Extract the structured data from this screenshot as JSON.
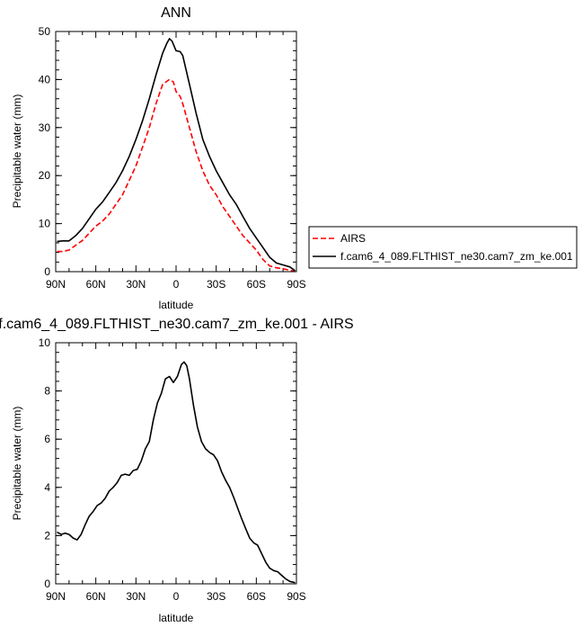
{
  "chart_data": [
    {
      "type": "line",
      "title": "ANN",
      "xlabel": "latitude",
      "ylabel": "Precipitable water (mm)",
      "xlim": [
        90,
        -90
      ],
      "ylim": [
        0,
        50
      ],
      "xticks": [
        90,
        60,
        30,
        0,
        -30,
        -60,
        -90
      ],
      "xtick_labels": [
        "90N",
        "60N",
        "30N",
        "0",
        "30S",
        "60S",
        "90S"
      ],
      "yticks": [
        0,
        10,
        20,
        30,
        40,
        50
      ],
      "ytick_labels": [
        "0",
        "10",
        "20",
        "30",
        "40",
        "50"
      ],
      "legend_position": "outside-right",
      "series": [
        {
          "name": "AIRS",
          "color": "#ff0000",
          "dash": "dashed",
          "x": [
            89,
            85,
            80,
            75,
            70,
            65,
            60,
            55,
            50,
            45,
            40,
            35,
            30,
            25,
            20,
            15,
            10,
            5,
            2,
            0,
            -3,
            -5,
            -10,
            -15,
            -20,
            -25,
            -30,
            -35,
            -40,
            -45,
            -50,
            -55,
            -60,
            -65,
            -70,
            -75,
            -80,
            -85,
            -89
          ],
          "y": [
            4.2,
            4.2,
            4.5,
            5.5,
            6.5,
            8.0,
            9.5,
            10.5,
            12.0,
            14.0,
            16.0,
            19.0,
            22.0,
            26.0,
            30.0,
            35.0,
            39.0,
            40.0,
            39.5,
            37.5,
            36.5,
            35.0,
            30.0,
            25.0,
            21.0,
            18.0,
            16.0,
            13.5,
            11.5,
            9.5,
            7.5,
            6.0,
            4.5,
            2.5,
            1.2,
            0.8,
            0.6,
            0.3,
            0.1
          ]
        },
        {
          "name": "f.cam6_4_089.FLTHIST_ne30.cam7_zm_ke.001",
          "color": "#000000",
          "dash": "solid",
          "x": [
            89,
            85,
            80,
            75,
            70,
            65,
            60,
            55,
            50,
            45,
            40,
            35,
            30,
            25,
            20,
            15,
            10,
            7,
            5,
            3,
            0,
            -3,
            -5,
            -10,
            -15,
            -20,
            -25,
            -30,
            -35,
            -40,
            -45,
            -50,
            -55,
            -60,
            -65,
            -70,
            -75,
            -80,
            -85,
            -89
          ],
          "y": [
            6.3,
            6.4,
            6.4,
            7.5,
            9.0,
            11.0,
            13.0,
            14.5,
            16.5,
            18.5,
            21.0,
            24.0,
            27.5,
            31.5,
            36.0,
            41.0,
            45.5,
            47.5,
            48.5,
            48.0,
            46.0,
            45.8,
            45.0,
            39.0,
            33.0,
            27.5,
            24.0,
            21.0,
            18.5,
            16.0,
            14.0,
            11.5,
            9.0,
            7.0,
            5.0,
            3.0,
            1.8,
            1.4,
            1.0,
            0.2
          ]
        }
      ]
    },
    {
      "type": "line",
      "title": "f.cam6_4_089.FLTHIST_ne30.cam7_zm_ke.001 - AIRS",
      "xlabel": "latitude",
      "ylabel": "Precipitable water (mm)",
      "xlim": [
        90,
        -90
      ],
      "ylim": [
        0,
        10
      ],
      "xticks": [
        90,
        60,
        30,
        0,
        -30,
        -60,
        -90
      ],
      "xtick_labels": [
        "90N",
        "60N",
        "30N",
        "0",
        "30S",
        "60S",
        "90S"
      ],
      "yticks": [
        0,
        2,
        4,
        6,
        8,
        10
      ],
      "ytick_labels": [
        "0",
        "2",
        "4",
        "6",
        "8",
        "10"
      ],
      "series": [
        {
          "color": "#000000",
          "dash": "solid",
          "x": [
            89,
            86,
            83,
            80,
            77,
            74,
            71,
            68,
            65,
            62,
            59,
            56,
            53,
            50,
            47,
            44,
            41,
            38,
            35,
            32,
            29,
            26,
            23,
            20,
            17,
            14,
            11,
            8,
            5,
            2,
            -1,
            -4,
            -6,
            -8,
            -10,
            -13,
            -16,
            -19,
            -22,
            -25,
            -28,
            -31,
            -34,
            -37,
            -40,
            -43,
            -46,
            -49,
            -52,
            -55,
            -58,
            -61,
            -64,
            -67,
            -70,
            -73,
            -76,
            -79,
            -82,
            -85,
            -89
          ],
          "y": [
            2.15,
            2.05,
            2.1,
            2.05,
            1.9,
            1.82,
            2.05,
            2.45,
            2.8,
            3.0,
            3.25,
            3.35,
            3.55,
            3.85,
            4.0,
            4.2,
            4.5,
            4.55,
            4.5,
            4.7,
            4.75,
            5.1,
            5.6,
            5.9,
            6.8,
            7.5,
            7.9,
            8.5,
            8.6,
            8.35,
            8.6,
            9.1,
            9.2,
            9.05,
            8.5,
            7.4,
            6.5,
            5.9,
            5.6,
            5.45,
            5.35,
            5.1,
            4.65,
            4.3,
            4.0,
            3.6,
            3.15,
            2.7,
            2.3,
            1.9,
            1.7,
            1.6,
            1.25,
            0.9,
            0.65,
            0.55,
            0.5,
            0.35,
            0.2,
            0.1,
            0.05
          ]
        }
      ]
    }
  ]
}
